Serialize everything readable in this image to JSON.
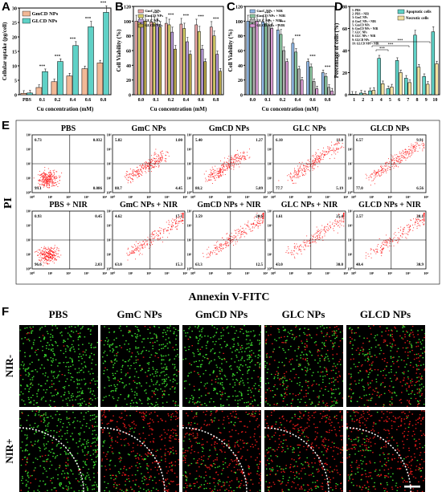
{
  "panel_letters": [
    "A",
    "B",
    "C",
    "D",
    "E",
    "F"
  ],
  "charts": {
    "A": {
      "type": "bar",
      "xlabel": "Cu concentration (mM)",
      "ylabel": "Cellular uptake (pg/cell)",
      "categories": [
        "PBS",
        "0.1",
        "0.2",
        "0.4",
        "0.6",
        "0.8"
      ],
      "ylim": [
        0,
        30
      ],
      "yticks": [
        "0",
        "5",
        "10",
        "15",
        "20",
        "25",
        "30"
      ],
      "colors": [
        "#f2b896",
        "#5fd1c6"
      ],
      "series": [
        {
          "name": "GmCD NPs",
          "values": [
            0.5,
            2.5,
            4.5,
            6.5,
            9.0,
            11.0
          ]
        },
        {
          "name": "GLCD NPs",
          "values": [
            0.6,
            8.0,
            11.5,
            17.0,
            23.5,
            28.5
          ]
        }
      ],
      "sig": [
        "",
        "***",
        "***",
        "***",
        "***",
        "***"
      ]
    },
    "B": {
      "type": "bar",
      "xlabel": "Cu concentration (mM)",
      "ylabel": "Cell Viability (%)",
      "categories": [
        "0.0",
        "0.1",
        "0.2",
        "0.4",
        "0.6",
        "0.8"
      ],
      "ylim": [
        0,
        120
      ],
      "yticks": [
        "0",
        "20",
        "40",
        "60",
        "80",
        "100",
        "120"
      ],
      "colors": [
        "#e9a5a5",
        "#d9d16a",
        "#b79ad8",
        "#b6a54a"
      ],
      "series": [
        {
          "name": "GmC NPs",
          "values": [
            100,
            99,
            97,
            96,
            95,
            92
          ]
        },
        {
          "name": "GmCD NPs",
          "values": [
            100,
            98,
            95,
            90,
            86,
            80
          ]
        },
        {
          "name": "GLC NPs",
          "values": [
            100,
            96,
            85,
            72,
            62,
            55
          ]
        },
        {
          "name": "GLCD NPs",
          "values": [
            100,
            92,
            62,
            55,
            45,
            32
          ]
        }
      ],
      "sig": [
        "",
        "***",
        "***",
        "***",
        "***",
        "***"
      ]
    },
    "C": {
      "type": "bar",
      "xlabel": "Cu concentration (mM)",
      "ylabel": "Cell Viability (%)",
      "categories": [
        "0.0",
        "0.1",
        "0.2",
        "0.4",
        "0.6",
        "0.8"
      ],
      "ylim": [
        0,
        120
      ],
      "yticks": [
        "0",
        "20",
        "40",
        "60",
        "80",
        "100",
        "120"
      ],
      "colors": [
        "#8fb7e6",
        "#8cc7a1",
        "#b0b0b0",
        "#d89ad3"
      ],
      "series": [
        {
          "name": "GmC NPs + NIR",
          "values": [
            100,
            99,
            88,
            70,
            45,
            30
          ]
        },
        {
          "name": "GmCD NPs + NIR",
          "values": [
            100,
            97,
            82,
            58,
            38,
            25
          ]
        },
        {
          "name": "GLC NPs + NIR",
          "values": [
            100,
            94,
            60,
            35,
            18,
            10
          ]
        },
        {
          "name": "GLCD NPs + NIR",
          "values": [
            100,
            90,
            45,
            20,
            8,
            5
          ]
        }
      ],
      "sig": [
        "",
        "***",
        "***",
        "***",
        "***",
        "***"
      ]
    },
    "D": {
      "type": "bar",
      "xlabel": "",
      "ylabel": "Percentage of cells (%)",
      "categories": [
        "1",
        "2",
        "3",
        "4",
        "5",
        "6",
        "7",
        "8",
        "9",
        "10"
      ],
      "ylim": [
        0,
        80
      ],
      "yticks": [
        "0",
        "20",
        "40",
        "60",
        "80"
      ],
      "colors": [
        "#5fd1c6",
        "#f2e0a0"
      ],
      "series": [
        {
          "name": "Apoptotic cells",
          "values": [
            0.5,
            1.5,
            3.5,
            33.0,
            5.5,
            31.0,
            15.0,
            54.0,
            16.5,
            57.0
          ]
        },
        {
          "name": "Necrotic cells",
          "values": [
            0.4,
            1.0,
            4.0,
            10.0,
            7.0,
            20.0,
            11.0,
            25.0,
            9.5,
            28.0
          ]
        }
      ],
      "legend_groups": [
        "1: PBS",
        "2: PBS + NIR",
        "3: GmC NPs",
        "4: GmC NPs + NIR",
        "5: GmCD NPs",
        "6: GmCD NPs + NIR",
        "7: GLC NPs",
        "8: GLC NPs + NIR",
        "9: GLCD NPs",
        "10: GLCD NPs + NIR"
      ],
      "sig_text": "***"
    }
  },
  "flow": {
    "xlabel": "Annexin V-FITC",
    "ylabel": "PI",
    "axis_ticks": [
      "10⁰",
      "10¹",
      "10²",
      "10³",
      "10⁴"
    ],
    "rows": [
      [
        {
          "title": "PBS",
          "ul": "0.73",
          "ur": "0.032",
          "ll": "99.1",
          "lr": "0.086",
          "level": 0
        },
        {
          "title": "GmC NPs",
          "ul": "5.82",
          "ur": "1.00",
          "ll": "88.7",
          "lr": "4.45",
          "level": 1
        },
        {
          "title": "GmCD NPs",
          "ul": "5.40",
          "ur": "1.27",
          "ll": "88.2",
          "lr": "5.09",
          "level": 1
        },
        {
          "title": "GLC NPs",
          "ul": "6.10",
          "ur": "11.0",
          "ll": "77.7",
          "lr": "5.19",
          "level": 2
        },
        {
          "title": "GLCD NPs",
          "ul": "6.57",
          "ur": "9.91",
          "ll": "77.0",
          "lr": "6.56",
          "level": 2
        }
      ],
      [
        {
          "title": "PBS + NIR",
          "ul": "0.93",
          "ur": "0.45",
          "ll": "96.6",
          "lr": "2.03",
          "level": 0
        },
        {
          "title": "GmC NPs + NIR",
          "ul": "4.62",
          "ur": "17.1",
          "ll": "63.0",
          "lr": "15.3",
          "level": 3
        },
        {
          "title": "GmCD NPs + NIR",
          "ul": "3.59",
          "ur": "20.6",
          "ll": "63.3",
          "lr": "12.5",
          "level": 3
        },
        {
          "title": "GLC NPs + NIR",
          "ul": "1.61",
          "ur": "25.4",
          "ll": "43.0",
          "lr": "30.0",
          "level": 4
        },
        {
          "title": "GLCD NPs + NIR",
          "ul": "2.57",
          "ur": "28.1",
          "ll": "40.4",
          "lr": "30.9",
          "level": 4
        }
      ]
    ]
  },
  "fluor": {
    "titles": [
      "PBS",
      "GmC NPs",
      "GmCD NPs",
      "GLC NPs",
      "GLCD NPs"
    ],
    "rows": [
      "NIR-",
      "NIR+"
    ],
    "red_fraction": [
      [
        0.05,
        0.06,
        0.1,
        0.4,
        0.45
      ],
      [
        0.1,
        0.9,
        0.85,
        0.9,
        0.92
      ]
    ],
    "green_color": "#3bdc2e",
    "red_color": "#e01818"
  }
}
